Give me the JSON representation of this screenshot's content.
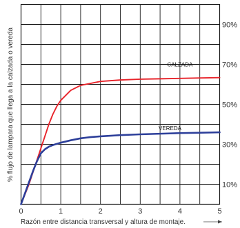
{
  "chart_data": {
    "type": "line",
    "title": "",
    "xlabel": "Razón entre distancia transversal y altura de montaje.",
    "ylabel": "% flujo de lampara que llega a la calzada o vereda",
    "xlim": [
      0,
      5
    ],
    "ylim": [
      0,
      100
    ],
    "x_ticks": [
      "0",
      "1",
      "2",
      "3",
      "4",
      "5"
    ],
    "y_ticks": [
      "10%",
      "30%",
      "50%",
      "70%",
      "90%"
    ],
    "y_tick_values": [
      10,
      30,
      50,
      70,
      90
    ],
    "grid": true,
    "series": [
      {
        "name": "CALZADA",
        "color": "#e8242b",
        "x": [
          0,
          0.1,
          0.2,
          0.3,
          0.4,
          0.5,
          0.6,
          0.7,
          0.8,
          0.9,
          1.0,
          1.25,
          1.5,
          1.75,
          2.0,
          2.5,
          3.0,
          3.5,
          4.0,
          4.5,
          5.0
        ],
        "y": [
          0,
          5,
          10,
          16,
          22,
          28,
          34,
          40,
          45,
          49,
          52,
          57,
          59.5,
          60.5,
          61.5,
          62.2,
          62.6,
          62.8,
          63,
          63.2,
          63.4
        ]
      },
      {
        "name": "VEREDA",
        "color": "#2d3f9a",
        "x": [
          0,
          0.1,
          0.2,
          0.3,
          0.4,
          0.5,
          0.6,
          0.7,
          0.8,
          0.9,
          1.0,
          1.25,
          1.5,
          1.75,
          2.0,
          2.5,
          3.0,
          3.5,
          4.0,
          4.5,
          5.0
        ],
        "y": [
          0,
          5.5,
          11,
          16.5,
          21.5,
          25.5,
          27.5,
          28.8,
          29.6,
          30.2,
          30.8,
          32,
          33,
          33.6,
          34,
          34.6,
          35,
          35.3,
          35.6,
          35.8,
          36
        ]
      }
    ]
  }
}
